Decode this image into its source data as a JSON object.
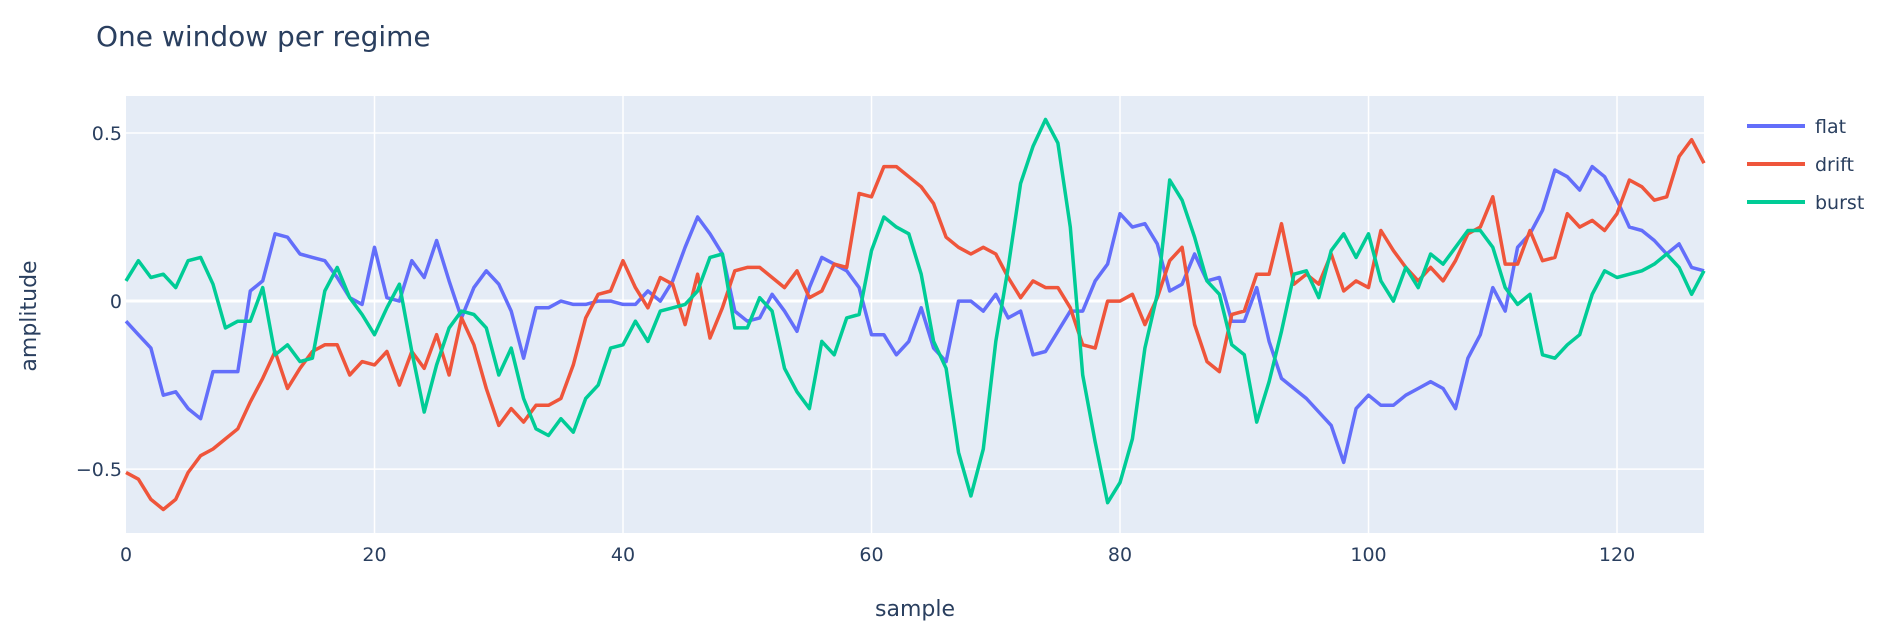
{
  "chart_data": {
    "type": "line",
    "title": "One window per regime",
    "xlabel": "sample",
    "ylabel": "amplitude",
    "xlim": [
      0,
      127
    ],
    "ylim": [
      -0.69,
      0.61
    ],
    "xticks": [
      0,
      20,
      40,
      60,
      80,
      100,
      120
    ],
    "xtick_labels": [
      "0",
      "20",
      "40",
      "60",
      "80",
      "100",
      "120"
    ],
    "yticks": [
      -0.5,
      0,
      0.5
    ],
    "ytick_labels": [
      "−0.5",
      "0",
      "0.5"
    ],
    "grid": true,
    "legend_position": "top-right",
    "x": [
      0,
      1,
      2,
      3,
      4,
      5,
      6,
      7,
      8,
      9,
      10,
      11,
      12,
      13,
      14,
      15,
      16,
      17,
      18,
      19,
      20,
      21,
      22,
      23,
      24,
      25,
      26,
      27,
      28,
      29,
      30,
      31,
      32,
      33,
      34,
      35,
      36,
      37,
      38,
      39,
      40,
      41,
      42,
      43,
      44,
      45,
      46,
      47,
      48,
      49,
      50,
      51,
      52,
      53,
      54,
      55,
      56,
      57,
      58,
      59,
      60,
      61,
      62,
      63,
      64,
      65,
      66,
      67,
      68,
      69,
      70,
      71,
      72,
      73,
      74,
      75,
      76,
      77,
      78,
      79,
      80,
      81,
      82,
      83,
      84,
      85,
      86,
      87,
      88,
      89,
      90,
      91,
      92,
      93,
      94,
      95,
      96,
      97,
      98,
      99,
      100,
      101,
      102,
      103,
      104,
      105,
      106,
      107,
      108,
      109,
      110,
      111,
      112,
      113,
      114,
      115,
      116,
      117,
      118,
      119,
      120,
      121,
      122,
      123,
      124,
      125,
      126,
      127
    ],
    "series": [
      {
        "name": "flat",
        "color": "#636efa",
        "values": [
          -0.06,
          -0.1,
          -0.14,
          -0.28,
          -0.27,
          -0.32,
          -0.35,
          -0.21,
          -0.21,
          -0.21,
          0.03,
          0.06,
          0.2,
          0.19,
          0.14,
          0.13,
          0.12,
          0.07,
          0.01,
          -0.01,
          0.16,
          0.01,
          0.0,
          0.12,
          0.07,
          0.18,
          0.06,
          -0.05,
          0.04,
          0.09,
          0.05,
          -0.03,
          -0.17,
          -0.02,
          -0.02,
          0.0,
          -0.01,
          -0.01,
          0.0,
          0.0,
          -0.01,
          -0.01,
          0.03,
          0.0,
          0.06,
          0.16,
          0.25,
          0.2,
          0.14,
          -0.03,
          -0.06,
          -0.05,
          0.02,
          -0.03,
          -0.09,
          0.04,
          0.13,
          0.11,
          0.09,
          0.04,
          -0.1,
          -0.1,
          -0.16,
          -0.12,
          -0.02,
          -0.14,
          -0.18,
          0.0,
          0.0,
          -0.03,
          0.02,
          -0.05,
          -0.03,
          -0.16,
          -0.15,
          -0.09,
          -0.03,
          -0.03,
          0.06,
          0.11,
          0.26,
          0.22,
          0.23,
          0.17,
          0.03,
          0.05,
          0.14,
          0.06,
          0.07,
          -0.06,
          -0.06,
          0.04,
          -0.12,
          -0.23,
          -0.26,
          -0.29,
          -0.33,
          -0.37,
          -0.48,
          -0.32,
          -0.28,
          -0.31,
          -0.31,
          -0.28,
          -0.26,
          -0.24,
          -0.26,
          -0.32,
          -0.17,
          -0.1,
          0.04,
          -0.03,
          0.16,
          0.2,
          0.27,
          0.39,
          0.37,
          0.33,
          0.4,
          0.37,
          0.3,
          0.22,
          0.21,
          0.18,
          0.14,
          0.17,
          0.1,
          0.09
        ]
      },
      {
        "name": "drift",
        "color": "#ef553b",
        "values": [
          -0.51,
          -0.53,
          -0.59,
          -0.62,
          -0.59,
          -0.51,
          -0.46,
          -0.44,
          -0.41,
          -0.38,
          -0.3,
          -0.23,
          -0.15,
          -0.26,
          -0.2,
          -0.15,
          -0.13,
          -0.13,
          -0.22,
          -0.18,
          -0.19,
          -0.15,
          -0.25,
          -0.15,
          -0.2,
          -0.1,
          -0.22,
          -0.05,
          -0.13,
          -0.26,
          -0.37,
          -0.32,
          -0.36,
          -0.31,
          -0.31,
          -0.29,
          -0.19,
          -0.05,
          0.02,
          0.03,
          0.12,
          0.04,
          -0.02,
          0.07,
          0.05,
          -0.07,
          0.08,
          -0.11,
          -0.02,
          0.09,
          0.1,
          0.1,
          0.07,
          0.04,
          0.09,
          0.01,
          0.03,
          0.11,
          0.1,
          0.32,
          0.31,
          0.4,
          0.4,
          0.37,
          0.34,
          0.29,
          0.19,
          0.16,
          0.14,
          0.16,
          0.14,
          0.07,
          0.01,
          0.06,
          0.04,
          0.04,
          -0.02,
          -0.13,
          -0.14,
          0.0,
          0.0,
          0.02,
          -0.07,
          0.01,
          0.12,
          0.16,
          -0.07,
          -0.18,
          -0.21,
          -0.04,
          -0.03,
          0.08,
          0.08,
          0.23,
          0.05,
          0.08,
          0.05,
          0.14,
          0.03,
          0.06,
          0.04,
          0.21,
          0.15,
          0.1,
          0.06,
          0.1,
          0.06,
          0.12,
          0.2,
          0.22,
          0.31,
          0.11,
          0.11,
          0.21,
          0.12,
          0.13,
          0.26,
          0.22,
          0.24,
          0.21,
          0.26,
          0.36,
          0.34,
          0.3,
          0.31,
          0.43,
          0.48,
          0.41
        ]
      },
      {
        "name": "burst",
        "color": "#00cc96",
        "values": [
          0.06,
          0.12,
          0.07,
          0.08,
          0.04,
          0.12,
          0.13,
          0.05,
          -0.08,
          -0.06,
          -0.06,
          0.04,
          -0.16,
          -0.13,
          -0.18,
          -0.17,
          0.03,
          0.1,
          0.01,
          -0.04,
          -0.1,
          -0.02,
          0.05,
          -0.15,
          -0.33,
          -0.19,
          -0.08,
          -0.03,
          -0.04,
          -0.08,
          -0.22,
          -0.14,
          -0.29,
          -0.38,
          -0.4,
          -0.35,
          -0.39,
          -0.29,
          -0.25,
          -0.14,
          -0.13,
          -0.06,
          -0.12,
          -0.03,
          -0.02,
          -0.01,
          0.03,
          0.13,
          0.14,
          -0.08,
          -0.08,
          0.01,
          -0.03,
          -0.2,
          -0.27,
          -0.32,
          -0.12,
          -0.16,
          -0.05,
          -0.04,
          0.15,
          0.25,
          0.22,
          0.2,
          0.08,
          -0.12,
          -0.2,
          -0.45,
          -0.58,
          -0.44,
          -0.12,
          0.1,
          0.35,
          0.46,
          0.54,
          0.47,
          0.22,
          -0.22,
          -0.42,
          -0.6,
          -0.54,
          -0.41,
          -0.14,
          0.02,
          0.36,
          0.3,
          0.19,
          0.06,
          0.02,
          -0.13,
          -0.16,
          -0.36,
          -0.24,
          -0.09,
          0.08,
          0.09,
          0.01,
          0.15,
          0.2,
          0.13,
          0.2,
          0.06,
          0.0,
          0.1,
          0.04,
          0.14,
          0.11,
          0.16,
          0.21,
          0.21,
          0.16,
          0.04,
          -0.01,
          0.02,
          -0.16,
          -0.17,
          -0.13,
          -0.1,
          0.02,
          0.09,
          0.07,
          0.08,
          0.09,
          0.11,
          0.14,
          0.1,
          0.02,
          0.09
        ]
      }
    ]
  }
}
